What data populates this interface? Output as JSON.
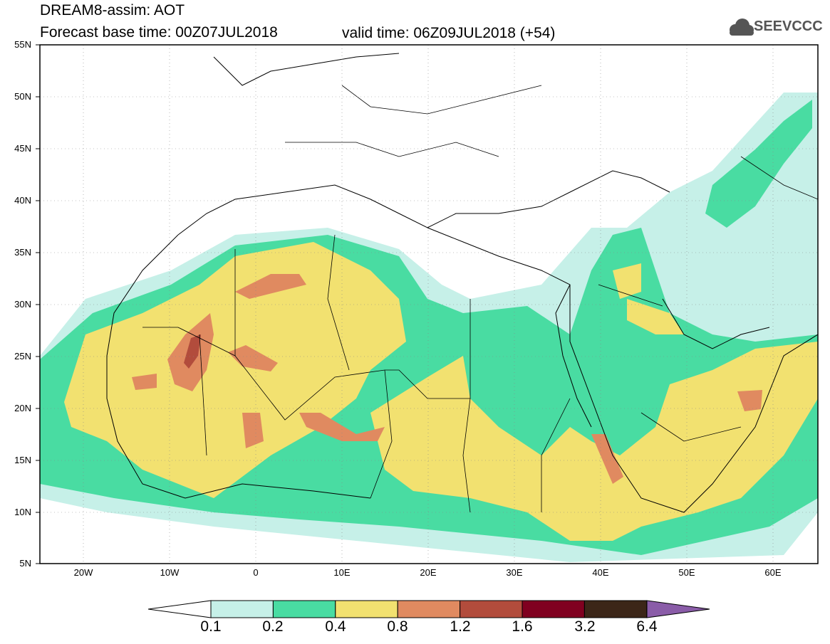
{
  "header": {
    "title_line1": "DREAM8-assim: AOT",
    "title_line2": "Forecast base time: 00Z07JUL2018",
    "valid_time": "valid time: 06Z09JUL2018 (+54)",
    "logo_text": "SEEVCCC",
    "logo_icon": "cloud-icon"
  },
  "axes": {
    "y_labels": [
      "55N",
      "50N",
      "45N",
      "40N",
      "35N",
      "30N",
      "25N",
      "20N",
      "15N",
      "10N",
      "5N"
    ],
    "x_labels": [
      "20W",
      "10W",
      "0",
      "10E",
      "20E",
      "30E",
      "40E",
      "50E",
      "60E"
    ]
  },
  "colorbar": {
    "levels": [
      "0.1",
      "0.2",
      "0.4",
      "0.8",
      "1.2",
      "1.6",
      "3.2",
      "6.4"
    ],
    "colors": [
      "#c6f0e8",
      "#49dca2",
      "#f2e170",
      "#e08a60",
      "#b24c3c",
      "#800020",
      "#3c2618",
      "#8a5ca8"
    ]
  },
  "map_colors": {
    "ocean": "#ffffff",
    "border": "#000000",
    "level_0_1": "#c6f0e8",
    "level_0_2": "#49dca2",
    "level_0_4": "#f2e170",
    "level_0_8": "#e08a60",
    "level_1_2": "#b24c3c"
  }
}
